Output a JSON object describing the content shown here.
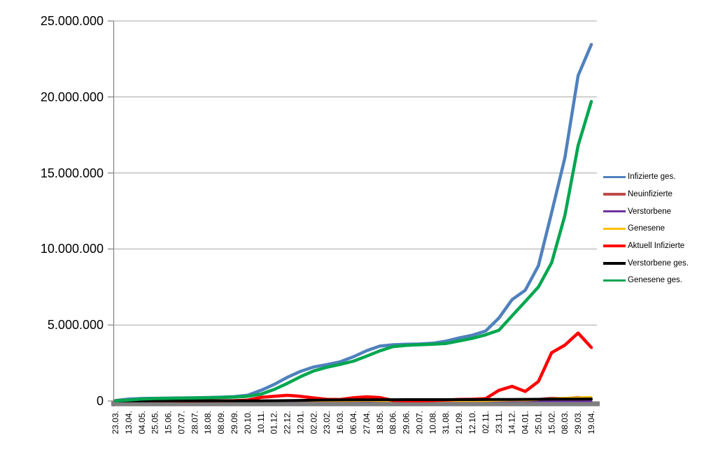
{
  "chart_data": {
    "type": "line",
    "title": "",
    "xlabel": "",
    "ylabel": "",
    "legend_position": "right",
    "grid": true,
    "categories": [
      "23.03.",
      "13.04.",
      "04.05.",
      "25.05.",
      "15.06.",
      "07.07.",
      "28.07.",
      "18.08.",
      "08.09.",
      "29.09.",
      "20.10.",
      "10.11.",
      "01.12.",
      "22.12.",
      "12.01.",
      "02.02.",
      "23.02.",
      "16.03.",
      "06.04.",
      "27.04.",
      "18.05.",
      "08.06.",
      "29.06.",
      "20.07.",
      "10.08.",
      "31.08.",
      "21.09.",
      "12.10.",
      "02.11.",
      "23.11.",
      "14.12.",
      "04.01.",
      "25.01.",
      "15.02.",
      "08.03.",
      "29.03.",
      "19.04."
    ],
    "y_axis": {
      "min": 0,
      "max": 25000000,
      "step": 5000000,
      "tick_labels": [
        "0",
        "5.000.000",
        "10.000.000",
        "15.000.000",
        "20.000.000",
        "25.000.000"
      ]
    },
    "series": [
      {
        "name": "Infizierte ges.",
        "color": "#4F81BD",
        "line_width": 4.5,
        "values": [
          30000,
          130000,
          165000,
          180000,
          190000,
          200000,
          210000,
          230000,
          255000,
          290000,
          380000,
          700000,
          1090000,
          1560000,
          1950000,
          2240000,
          2400000,
          2580000,
          2910000,
          3310000,
          3610000,
          3700000,
          3730000,
          3750000,
          3800000,
          3940000,
          4150000,
          4330000,
          4600000,
          5450000,
          6670000,
          7290000,
          8900000,
          12400000,
          16000000,
          21400000,
          23450000
        ]
      },
      {
        "name": "Neuinfizierte",
        "color": "#BE4B48",
        "line_width": 3,
        "values": [
          4000,
          4000,
          1200,
          600,
          400,
          400,
          700,
          1400,
          1500,
          2100,
          7500,
          19000,
          18500,
          25000,
          17000,
          12000,
          8000,
          13000,
          20000,
          22000,
          12000,
          3000,
          900,
          1500,
          4500,
          10000,
          8000,
          10000,
          21000,
          53000,
          54000,
          41000,
          133000,
          210000,
          186000,
          265000,
          140000
        ]
      },
      {
        "name": "Verstorbene",
        "color": "#7030A0",
        "line_width": 3,
        "values": [
          60,
          200,
          150,
          60,
          20,
          10,
          10,
          10,
          10,
          15,
          30,
          150,
          390,
          500,
          700,
          650,
          400,
          250,
          200,
          250,
          200,
          100,
          60,
          30,
          20,
          50,
          60,
          70,
          110,
          200,
          400,
          350,
          180,
          150,
          250,
          250,
          220
        ]
      },
      {
        "name": "Genesene",
        "color": "#FFC000",
        "line_width": 3,
        "values": [
          2500,
          5000,
          3000,
          1200,
          600,
          500,
          600,
          1100,
          1300,
          1900,
          4500,
          13000,
          17000,
          22000,
          20000,
          15000,
          10000,
          9500,
          17000,
          21000,
          16000,
          6000,
          1800,
          1200,
          3500,
          8500,
          8000,
          9500,
          15000,
          36000,
          50000,
          46000,
          85000,
          160000,
          200000,
          230000,
          260000
        ]
      },
      {
        "name": "Aktuell Infizierte",
        "color": "#FF0000",
        "line_width": 4.5,
        "values": [
          20000,
          62000,
          26000,
          10000,
          7000,
          5000,
          5000,
          11000,
          16000,
          21000,
          60000,
          238000,
          313000,
          373000,
          308000,
          201000,
          112000,
          96000,
          213000,
          278000,
          224000,
          31000,
          16000,
          9000,
          28000,
          68000,
          107000,
          116000,
          154000,
          700000,
          963000,
          628000,
          1283000,
          3180000,
          3676000,
          4470000,
          3520000
        ]
      },
      {
        "name": "Verstorbene ges.",
        "color": "#000000",
        "line_width": 4,
        "values": [
          300,
          3000,
          6800,
          8300,
          8800,
          9000,
          9100,
          9200,
          9300,
          9500,
          9900,
          11600,
          17100,
          27000,
          42600,
          59000,
          68300,
          73900,
          77100,
          82300,
          86500,
          89500,
          90800,
          91300,
          91800,
          92200,
          93000,
          94200,
          95900,
          100100,
          107000,
          112000,
          117000,
          120500,
          124000,
          128500,
          132800
        ]
      },
      {
        "name": "Genesene ges.",
        "color": "#00A650",
        "line_width": 4.5,
        "values": [
          15000,
          65000,
          132000,
          162000,
          174000,
          186000,
          196000,
          210000,
          230000,
          259000,
          310000,
          450000,
          760000,
          1160000,
          1600000,
          1980000,
          2220000,
          2410000,
          2620000,
          2950000,
          3300000,
          3580000,
          3660000,
          3700000,
          3730000,
          3780000,
          3950000,
          4120000,
          4350000,
          4650000,
          5600000,
          6550000,
          7500000,
          9100000,
          12200000,
          16800000,
          19700000
        ]
      }
    ]
  },
  "colors": {
    "background": "#FFFFFF",
    "gridline": "#A6A6A6",
    "axis_line": "#808080",
    "x_axis_bar": "#808080",
    "text": "#000000"
  }
}
